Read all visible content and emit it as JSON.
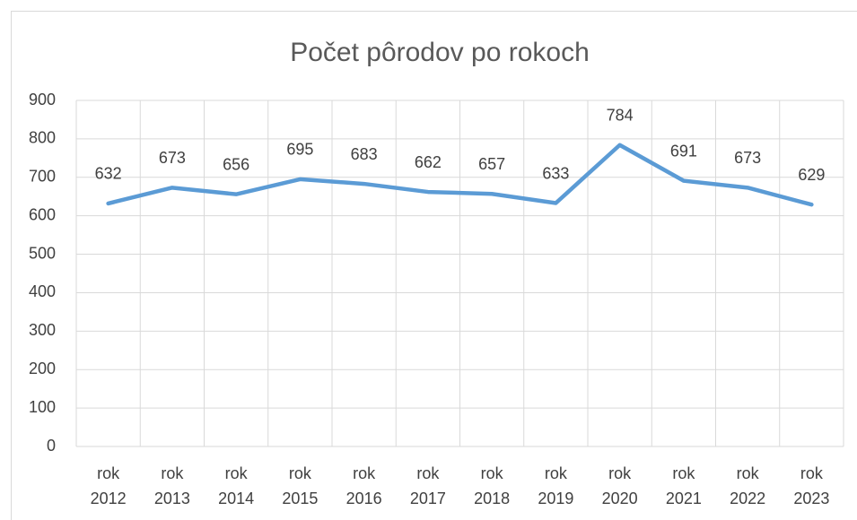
{
  "chart_data": {
    "type": "line",
    "title": "Počet pôrodov po rokoch",
    "categories": [
      "rok 2012",
      "rok 2013",
      "rok 2014",
      "rok 2015",
      "rok 2016",
      "rok 2017",
      "rok 2018",
      "rok 2019",
      "rok 2020",
      "rok 2021",
      "rok 2022",
      "rok 2023"
    ],
    "series": [
      {
        "name": "Počet pôrodov",
        "color": "#5b9bd5",
        "values": [
          632,
          673,
          656,
          695,
          683,
          662,
          657,
          633,
          784,
          691,
          673,
          629
        ]
      }
    ],
    "ylim": [
      0,
      900
    ],
    "yticks": [
      0,
      100,
      200,
      300,
      400,
      500,
      600,
      700,
      800,
      900
    ],
    "grid": true,
    "data_labels": true
  }
}
